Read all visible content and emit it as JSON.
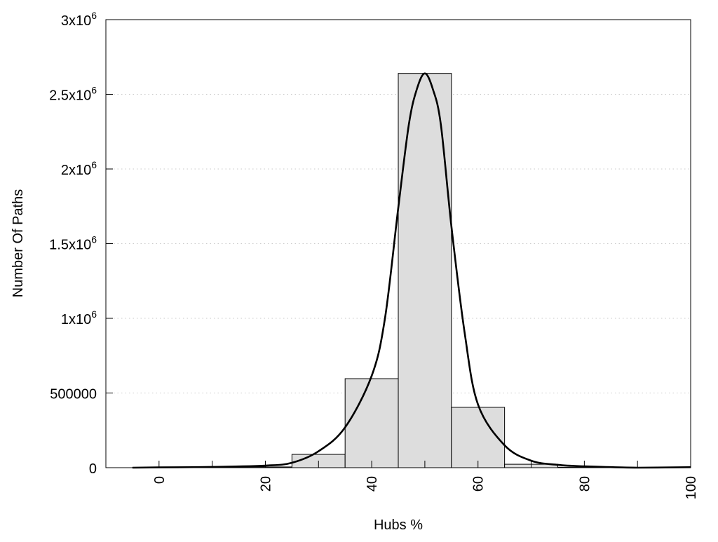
{
  "chart_data": {
    "type": "bar",
    "title": "",
    "xlabel": "Hubs %",
    "ylabel": "Number Of Paths",
    "xlim": [
      -10,
      100
    ],
    "ylim": [
      0,
      3000000
    ],
    "grid": "y-dotted",
    "bar_width": 10,
    "bar_color": "#dddddd",
    "x_ticks": [
      {
        "value": 0,
        "label": "0"
      },
      {
        "value": 20,
        "label": "20"
      },
      {
        "value": 40,
        "label": "40"
      },
      {
        "value": 60,
        "label": "60"
      },
      {
        "value": 80,
        "label": "80"
      },
      {
        "value": 100,
        "label": "100"
      }
    ],
    "x_minor_ticks": [
      10,
      30,
      50,
      70,
      90
    ],
    "y_ticks": [
      {
        "value": 0,
        "label": "0",
        "exp": ""
      },
      {
        "value": 500000,
        "label": "500000",
        "exp": ""
      },
      {
        "value": 1000000,
        "label": "1x10",
        "exp": "6"
      },
      {
        "value": 1500000,
        "label": "1.5x10",
        "exp": "6"
      },
      {
        "value": 2000000,
        "label": "2x10",
        "exp": "6"
      },
      {
        "value": 2500000,
        "label": "2.5x10",
        "exp": "6"
      },
      {
        "value": 3000000,
        "label": "3x10",
        "exp": "6"
      }
    ],
    "bars": {
      "x": [
        0,
        10,
        20,
        30,
        40,
        50,
        60,
        70,
        80,
        90,
        100
      ],
      "values": [
        1000,
        2000,
        5000,
        89000,
        596000,
        2640000,
        404000,
        23000,
        3000,
        1000,
        2000
      ]
    },
    "curve": {
      "name": "fit",
      "x": [
        -5,
        0,
        10,
        20,
        25,
        30,
        35,
        40,
        42.5,
        45,
        47,
        48.5,
        50,
        51.5,
        53,
        55,
        57.5,
        60,
        65,
        70,
        75,
        80,
        90,
        100
      ],
      "y": [
        0,
        2000,
        5000,
        14000,
        33000,
        110000,
        270000,
        615000,
        1000000,
        1740000,
        2300000,
        2535000,
        2640000,
        2535000,
        2300000,
        1615000,
        900000,
        423000,
        150000,
        47000,
        19000,
        9000,
        0,
        3000
      ]
    }
  }
}
